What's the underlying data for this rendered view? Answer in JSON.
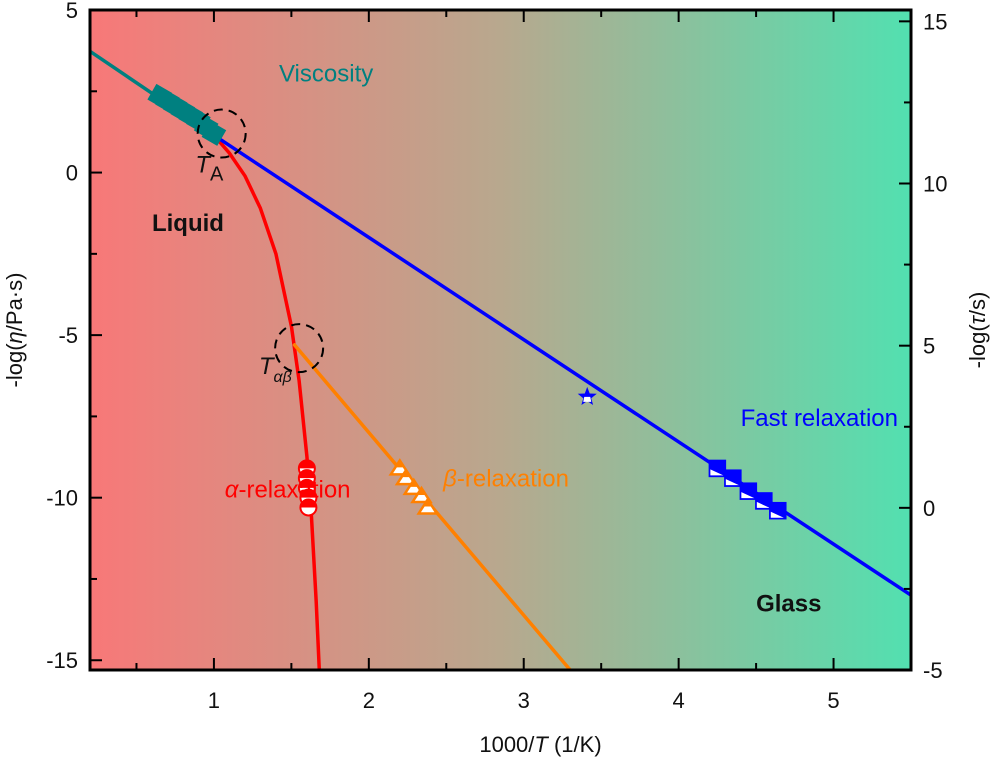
{
  "chart_data": {
    "type": "line",
    "title": "",
    "xlabel": {
      "prefix": "1000/",
      "italic": "T",
      "suffix": " (1/K)"
    },
    "ylabel_left": {
      "prefix": "-log(",
      "italic": "η",
      "suffix": "/Pa·s)"
    },
    "ylabel_right": {
      "prefix": "-log(",
      "italic": "τ",
      "suffix": "/s)"
    },
    "xlim": [
      0.2,
      5.5
    ],
    "ylim_left": [
      -15.3,
      5.0
    ],
    "ylim_right": [
      -5.0,
      15.35
    ],
    "x_ticks": [
      1,
      2,
      3,
      4,
      5
    ],
    "x_minor_ticks": [
      0.5,
      1.5,
      2.5,
      3.5,
      4.5
    ],
    "y_left_ticks": [
      5,
      0,
      -5,
      -10,
      -15
    ],
    "y_left_minor_ticks": [
      2.5,
      -2.5,
      -7.5,
      -12.5
    ],
    "y_right_ticks": [
      15,
      10,
      5,
      0,
      -5
    ],
    "y_right_minor_ticks": [
      12.5,
      7.5,
      2.5,
      -2.5
    ],
    "grid": false,
    "background_gradient": {
      "left": "#f87878",
      "middle": "#b8a88e",
      "right": "#52e0b0"
    },
    "series": [
      {
        "name": "Viscosity",
        "color": "#008080",
        "kind": "line",
        "points": [
          [
            0.2,
            3.73
          ],
          [
            1.0,
            1.15
          ]
        ]
      },
      {
        "name": "Viscosity data",
        "color": "#008080",
        "kind": "markers",
        "marker": "square",
        "points": [
          [
            0.65,
            2.35
          ],
          [
            0.7,
            2.2
          ],
          [
            0.75,
            2.05
          ],
          [
            0.8,
            1.9
          ],
          [
            0.85,
            1.75
          ],
          [
            0.9,
            1.6
          ],
          [
            0.95,
            1.4
          ],
          [
            1.0,
            1.2
          ]
        ]
      },
      {
        "name": "alpha-relaxation curve",
        "color": "#ff0000",
        "kind": "line",
        "points": [
          [
            1.0,
            1.15
          ],
          [
            1.1,
            0.6
          ],
          [
            1.2,
            -0.1
          ],
          [
            1.3,
            -1.1
          ],
          [
            1.4,
            -2.5
          ],
          [
            1.5,
            -4.73
          ],
          [
            1.55,
            -6.4
          ],
          [
            1.6,
            -8.73
          ],
          [
            1.63,
            -10.6
          ],
          [
            1.66,
            -13.2
          ],
          [
            1.68,
            -15.3
          ]
        ]
      },
      {
        "name": "alpha-relaxation data",
        "color": "#ff0000",
        "kind": "markers",
        "marker": "half-circle",
        "points": [
          [
            1.6,
            -9.1
          ],
          [
            1.6,
            -9.4
          ],
          [
            1.6,
            -9.7
          ],
          [
            1.61,
            -10.0
          ],
          [
            1.61,
            -10.3
          ]
        ]
      },
      {
        "name": "beta-relaxation",
        "color": "#ff8000",
        "kind": "line",
        "points": [
          [
            1.52,
            -5.3
          ],
          [
            3.3,
            -15.3
          ]
        ]
      },
      {
        "name": "beta-relaxation data",
        "color": "#ff8000",
        "kind": "markers",
        "marker": "half-triangle",
        "points": [
          [
            2.2,
            -9.1
          ],
          [
            2.24,
            -9.4
          ],
          [
            2.29,
            -9.7
          ],
          [
            2.34,
            -9.95
          ],
          [
            2.38,
            -10.3
          ]
        ]
      },
      {
        "name": "Fast relaxation",
        "color": "#0000ff",
        "kind": "line",
        "points": [
          [
            1.0,
            1.15
          ],
          [
            5.5,
            -13.0
          ]
        ]
      },
      {
        "name": "Fast relaxation data",
        "color": "#0000ff",
        "kind": "markers",
        "marker": "half-square",
        "points": [
          [
            4.25,
            -9.1
          ],
          [
            4.35,
            -9.4
          ],
          [
            4.45,
            -9.8
          ],
          [
            4.55,
            -10.1
          ],
          [
            4.64,
            -10.4
          ]
        ]
      },
      {
        "name": "Fast relaxation star",
        "color": "#0000ff",
        "kind": "markers",
        "marker": "star",
        "points": [
          [
            3.41,
            -6.9
          ]
        ]
      }
    ],
    "circles": [
      {
        "name": "T_A",
        "center": [
          1.05,
          1.2
        ]
      },
      {
        "name": "T_alpha_beta",
        "center": [
          1.55,
          -5.4
        ]
      }
    ],
    "annotations": [
      {
        "id": "viscosity",
        "text": "Viscosity",
        "at": [
          1.42,
          2.8
        ],
        "color": "#008080",
        "style": "normal"
      },
      {
        "id": "liquid",
        "text": "Liquid",
        "at": [
          0.6,
          -1.8
        ],
        "color": "#111111",
        "style": "bold"
      },
      {
        "id": "glass",
        "text": "Glass",
        "at": [
          4.5,
          -13.5
        ],
        "color": "#111111",
        "style": "bold"
      },
      {
        "id": "fast",
        "text": "Fast relaxation",
        "at": [
          4.4,
          -7.8
        ],
        "color": "#0000ff",
        "style": "normal"
      },
      {
        "id": "alpha",
        "text": "-relaxation",
        "greek": "α",
        "at": [
          1.07,
          -10.0
        ],
        "color": "#ff0000",
        "style": "normal"
      },
      {
        "id": "beta",
        "text": "-relaxation",
        "greek": "β",
        "at": [
          2.48,
          -9.65
        ],
        "color": "#ff8000",
        "style": "normal"
      },
      {
        "id": "ta",
        "text": "T",
        "sub": "A",
        "at": [
          0.88,
          0.0
        ],
        "color": "#111111",
        "style": "normal"
      },
      {
        "id": "tab",
        "text": "T",
        "sub": "αβ",
        "at": [
          1.29,
          -6.2
        ],
        "color": "#111111",
        "style": "normal"
      }
    ]
  }
}
